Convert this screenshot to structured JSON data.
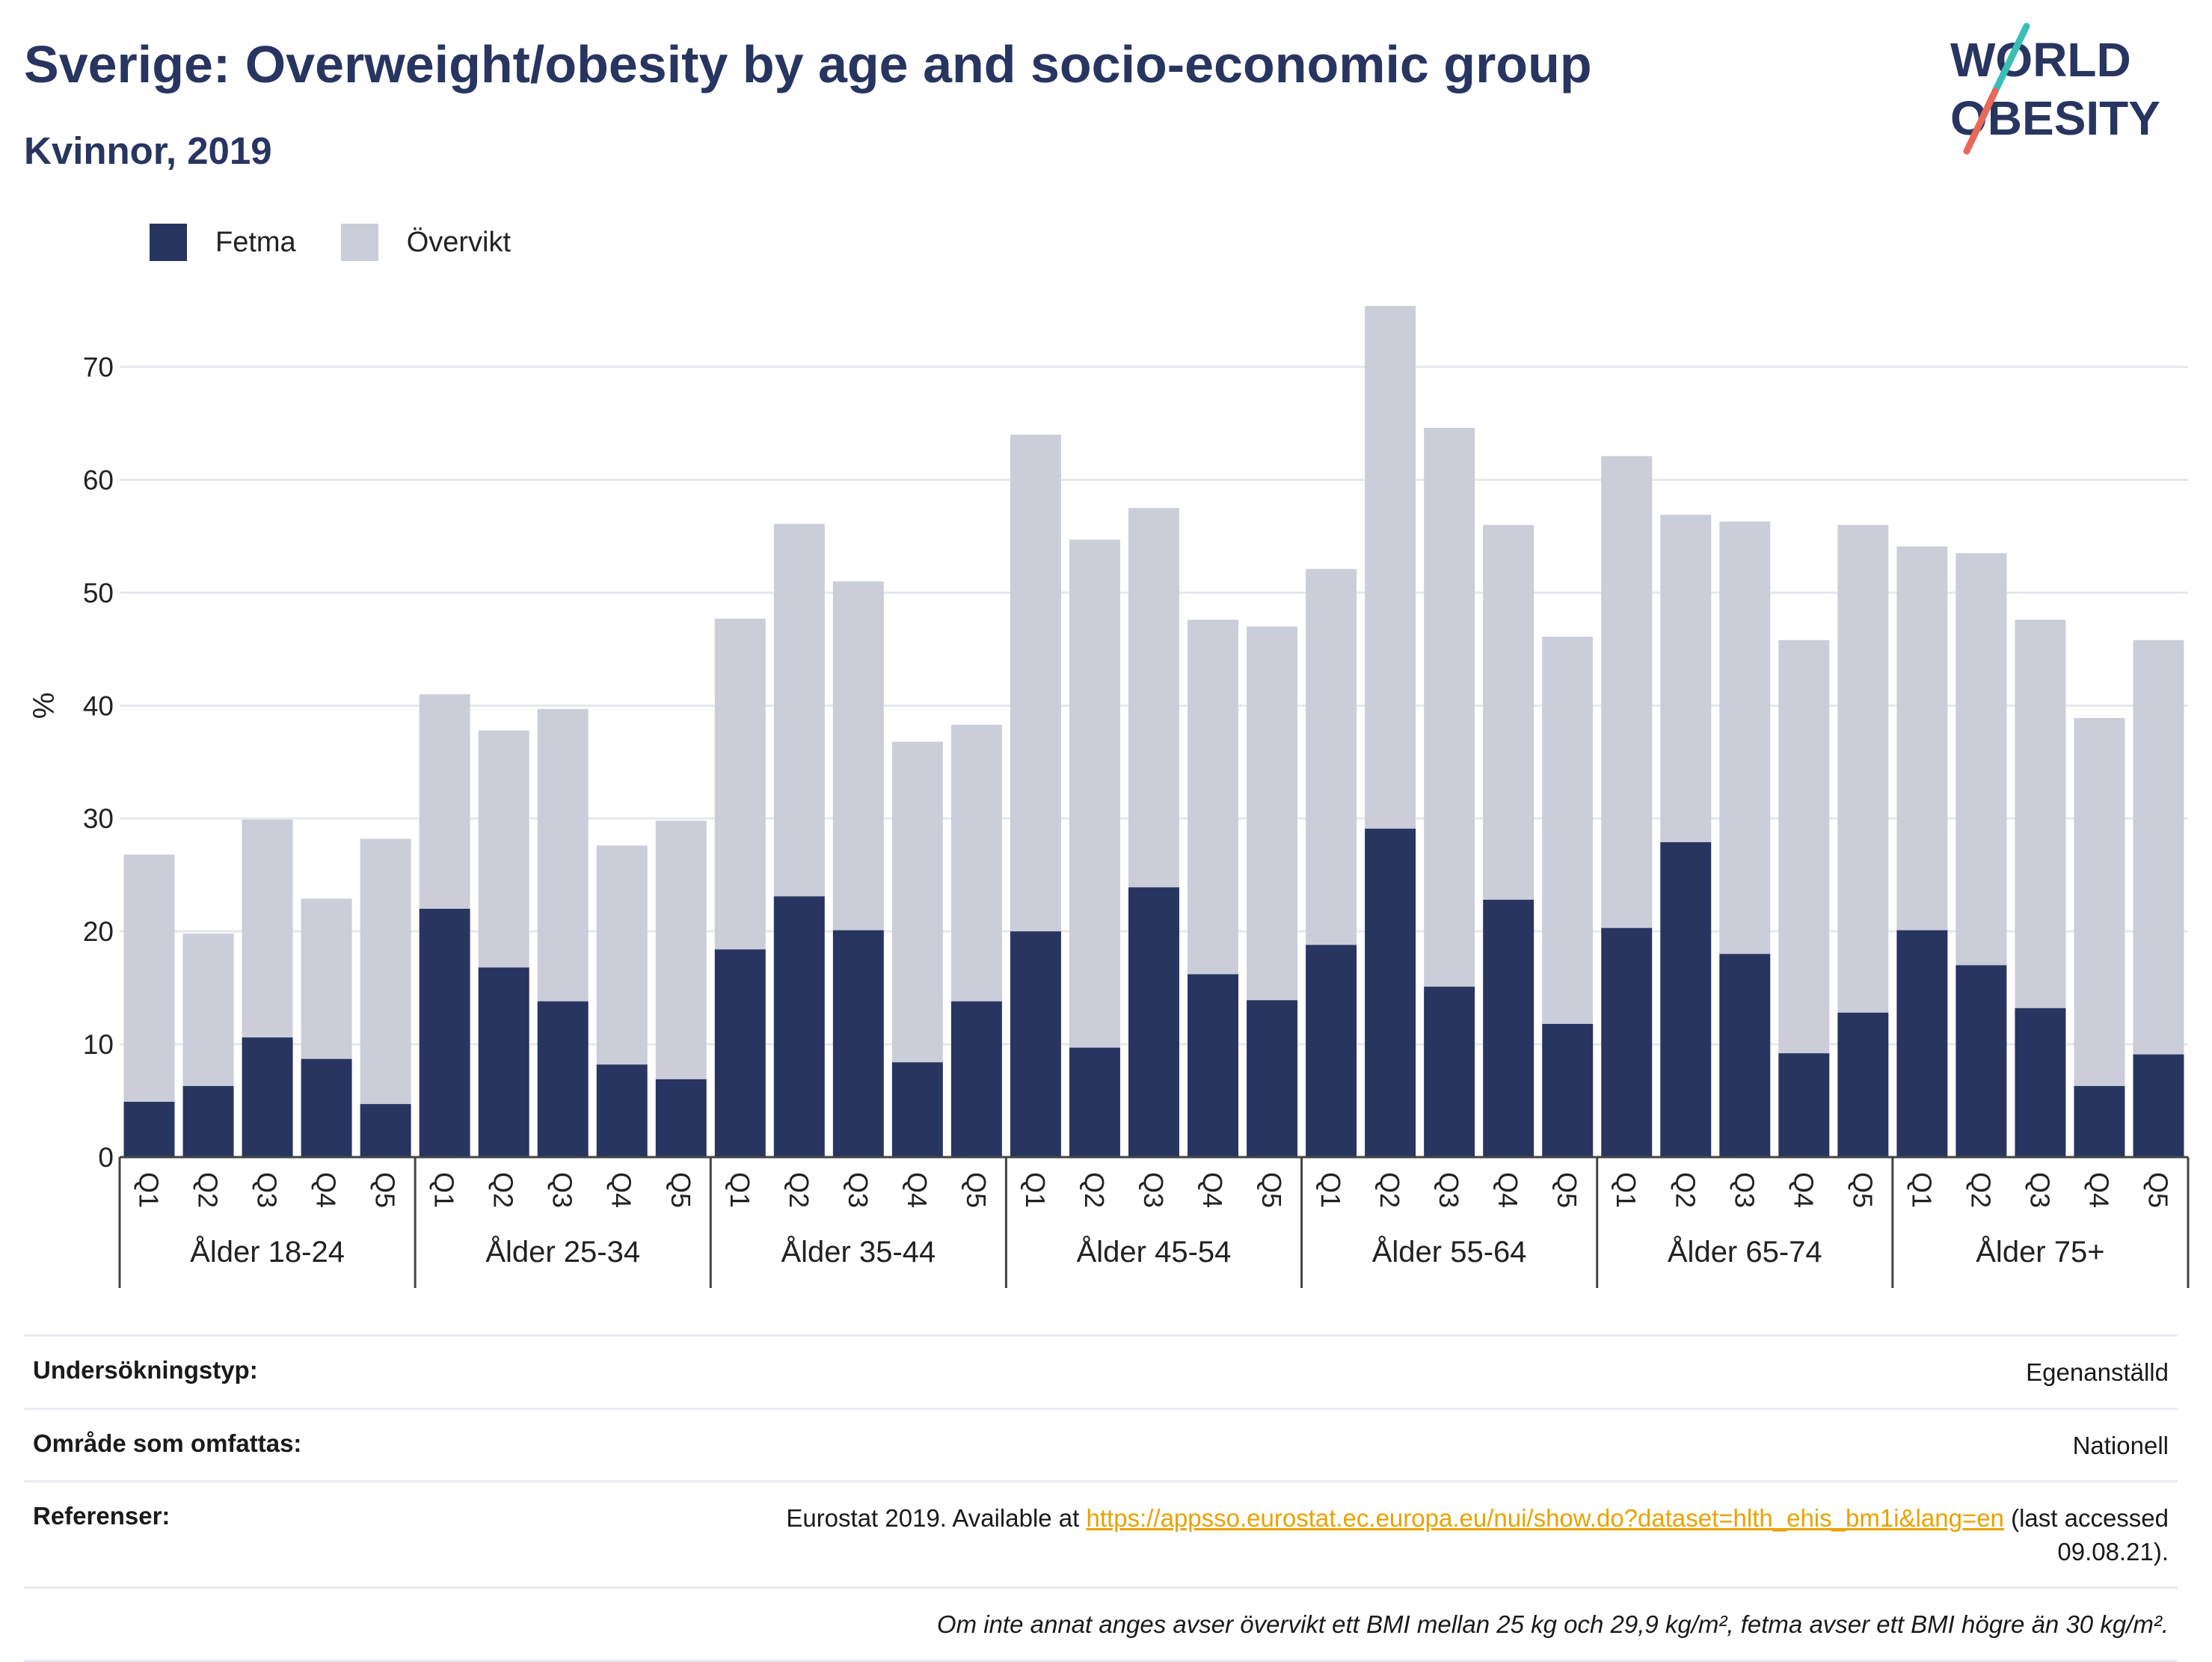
{
  "header": {
    "title": "Sverige: Overweight/obesity by age and socio-economic group",
    "subtitle": "Kvinnor, 2019",
    "logo_line1": "WORLD",
    "logo_line2": "OBESITY"
  },
  "colors": {
    "fetma": "#283561",
    "overvikt": "#cbcdd9",
    "accent_red": "#e8685a",
    "accent_teal": "#3bbfb5"
  },
  "chart_data": {
    "type": "bar",
    "stacked": true,
    "ylabel": "%",
    "ylim": [
      0,
      76
    ],
    "yticks": [
      0,
      10,
      20,
      30,
      40,
      50,
      60,
      70
    ],
    "grid": true,
    "legend": "top-left",
    "groups": [
      "Ålder 18-24",
      "Ålder 25-34",
      "Ålder 35-44",
      "Ålder 45-54",
      "Ålder 55-64",
      "Ålder 65-74",
      "Ålder 75+"
    ],
    "categories": [
      "Q1",
      "Q2",
      "Q3",
      "Q4",
      "Q5"
    ],
    "series": [
      {
        "name": "Fetma",
        "color": "#283561",
        "values": [
          [
            4.9,
            6.3,
            10.6,
            8.7,
            4.7
          ],
          [
            22.0,
            16.8,
            13.8,
            8.2,
            6.9
          ],
          [
            18.4,
            23.1,
            20.1,
            8.4,
            13.8
          ],
          [
            20.0,
            9.7,
            23.9,
            16.2,
            13.9
          ],
          [
            18.8,
            29.1,
            15.1,
            22.8,
            11.8
          ],
          [
            20.3,
            27.9,
            18.0,
            9.2,
            12.8
          ],
          [
            20.1,
            17.0,
            13.2,
            6.3,
            9.1
          ]
        ]
      },
      {
        "name": "Övervikt",
        "color": "#cbcdd9",
        "values": [
          [
            21.9,
            13.5,
            19.3,
            14.2,
            23.5
          ],
          [
            19.0,
            21.0,
            25.9,
            19.4,
            22.9
          ],
          [
            29.3,
            33.0,
            30.9,
            28.4,
            24.5
          ],
          [
            44.0,
            45.0,
            33.6,
            31.4,
            33.1
          ],
          [
            33.3,
            46.3,
            49.5,
            33.2,
            34.3
          ],
          [
            41.8,
            29.0,
            38.3,
            36.6,
            43.2
          ],
          [
            34.0,
            36.5,
            34.4,
            32.6,
            36.7
          ]
        ]
      }
    ]
  },
  "legend": {
    "fetma": "Fetma",
    "overvikt": "Övervikt"
  },
  "meta": {
    "survey_type_label": "Undersökningstyp:",
    "survey_type_value": "Egenanställd",
    "area_label": "Område som omfattas:",
    "area_value": "Nationell",
    "references_label": "Referenser:",
    "references_prefix": "Eurostat 2019. Available at ",
    "references_link": "https://appsso.eurostat.ec.europa.eu/nui/show.do?dataset=hlth_ehis_bm1i&lang=en",
    "references_suffix": " (last accessed 09.08.21).",
    "note": "Om inte annat anges avser övervikt ett BMI mellan 25 kg och 29,9 kg/m², fetma avser ett BMI högre än 30 kg/m²."
  }
}
